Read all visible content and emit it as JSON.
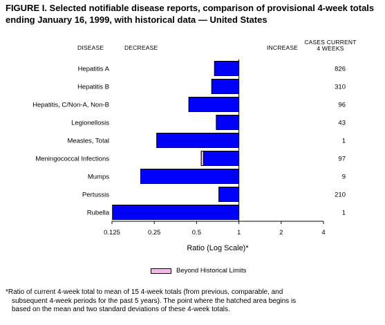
{
  "title": {
    "line1": "FIGURE I. Selected notifiable disease reports, comparison of provisional 4-week totals",
    "line2": "ending January 16, 1999, with historical data — United States"
  },
  "headers": {
    "disease": "DISEASE",
    "decrease": "DECREASE",
    "increase": "INCREASE",
    "cases_line1": "CASES CURRENT",
    "cases_line2": "4 WEEKS"
  },
  "chart_data": {
    "type": "bar",
    "orientation": "horizontal",
    "scale": "log2",
    "xlabel": "Ratio (Log Scale)*",
    "xlim": [
      0.125,
      4
    ],
    "xticks": [
      "0.125",
      "0.25",
      "0.5",
      "1",
      "2",
      "4"
    ],
    "baseline": 1,
    "categories": [
      "Hepatitis A",
      "Hepatitis B",
      "Hepatitis, C/Non-A, Non-B",
      "Legionellosis",
      "Measles, Total",
      "Meningococcal Infections",
      "Mumps",
      "Pertussis",
      "Rubella"
    ],
    "values": [
      0.67,
      0.64,
      0.44,
      0.69,
      0.26,
      0.54,
      0.2,
      0.72,
      0.126
    ],
    "beyond_historical_limits": [
      0,
      0,
      0,
      0,
      0,
      0.56,
      0,
      0,
      0
    ],
    "cases_current_4_weeks": [
      "826",
      "310",
      "96",
      "43",
      "1",
      "97",
      "9",
      "210",
      "1"
    ],
    "colors": {
      "bar": "#0000ff",
      "hatched": "#f4b8e6",
      "outline": "#000000"
    }
  },
  "legend": {
    "label": "Beyond Historical Limits"
  },
  "footnote": {
    "line1": "*Ratio of current 4-week total to mean of 15 4-week totals (from previous, comparable, and",
    "line2": "subsequent 4-week periods for the past 5 years). The point where the hatched area begins is",
    "line3": "based on the mean and two standard deviations of these 4-week totals."
  }
}
